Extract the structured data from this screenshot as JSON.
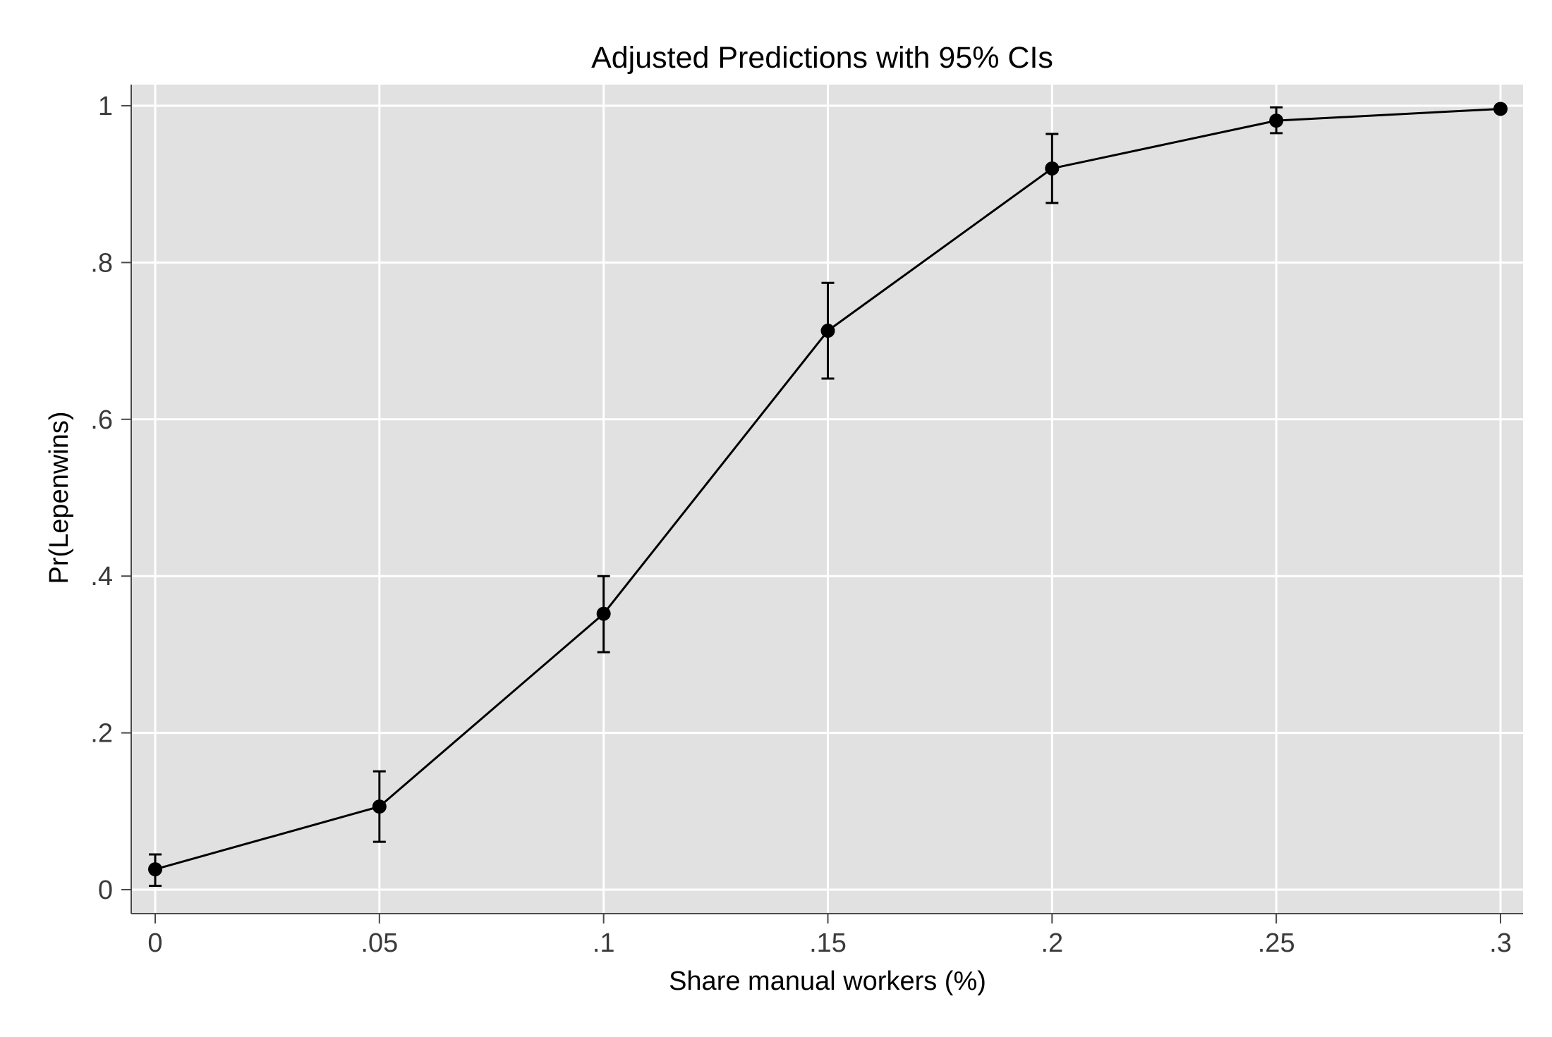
{
  "chart_data": {
    "type": "line",
    "title": "Adjusted Predictions with 95% CIs",
    "xlabel": "Share manual workers (%)",
    "ylabel": "Pr(Lepenwins)",
    "xlim": [
      0,
      0.3
    ],
    "ylim": [
      0,
      1
    ],
    "x_ticks": [
      0,
      0.05,
      0.1,
      0.15,
      0.2,
      0.25,
      0.3
    ],
    "x_tick_labels": [
      "0",
      ".05",
      ".1",
      ".15",
      ".2",
      ".25",
      ".3"
    ],
    "y_ticks": [
      0,
      0.2,
      0.4,
      0.6,
      0.8,
      1
    ],
    "y_tick_labels": [
      "0",
      ".2",
      ".4",
      ".6",
      ".8",
      "1"
    ],
    "grid": true,
    "colors": {
      "plot_background": "#e1e1e1",
      "grid": "#ffffff",
      "series": "#000000"
    },
    "series": [
      {
        "x": [
          0,
          0.05,
          0.1,
          0.15,
          0.2,
          0.25,
          0.3
        ],
        "values": [
          0.026,
          0.106,
          0.352,
          0.713,
          0.92,
          0.981,
          0.996
        ],
        "ci_lower": [
          0.005,
          0.061,
          0.303,
          0.652,
          0.876,
          0.965,
          0.993
        ],
        "ci_upper": [
          0.045,
          0.151,
          0.4,
          0.774,
          0.964,
          0.998,
          0.999
        ]
      }
    ]
  }
}
